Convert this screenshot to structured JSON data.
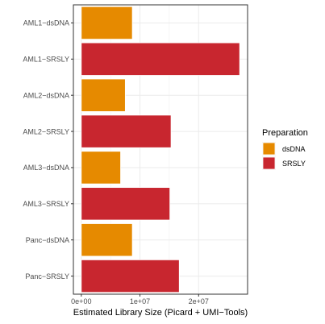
{
  "chart_data": {
    "type": "bar",
    "orientation": "horizontal",
    "categories": [
      "AML1−dsDNA",
      "AML1−SRSLY",
      "AML2−dsDNA",
      "AML2−SRSLY",
      "AML3−dsDNA",
      "AML3−SRSLY",
      "Panc−dsDNA",
      "Panc−SRSLY"
    ],
    "values": [
      8700000,
      27000000,
      7500000,
      15300000,
      6700000,
      15100000,
      8700000,
      16700000
    ],
    "groups": [
      "dsDNA",
      "SRSLY",
      "dsDNA",
      "SRSLY",
      "dsDNA",
      "SRSLY",
      "dsDNA",
      "SRSLY"
    ],
    "title": "",
    "xlabel": "Estimated Library Size (Picard + UMI−Tools)",
    "ylabel": "",
    "xlim": [
      -1350000,
      28350000
    ],
    "xticks": [
      0,
      10000000,
      20000000
    ],
    "xtick_labels": [
      "0e+00",
      "1e+07",
      "2e+07"
    ],
    "grid": true,
    "legend": {
      "title": "Preparation",
      "placement": "right",
      "entries": [
        {
          "label": "dsDNA",
          "color": "#E68A00"
        },
        {
          "label": "SRSLY",
          "color": "#C8262F"
        }
      ]
    },
    "colors": {
      "dsDNA": "#E68A00",
      "SRSLY": "#C8262F"
    }
  }
}
